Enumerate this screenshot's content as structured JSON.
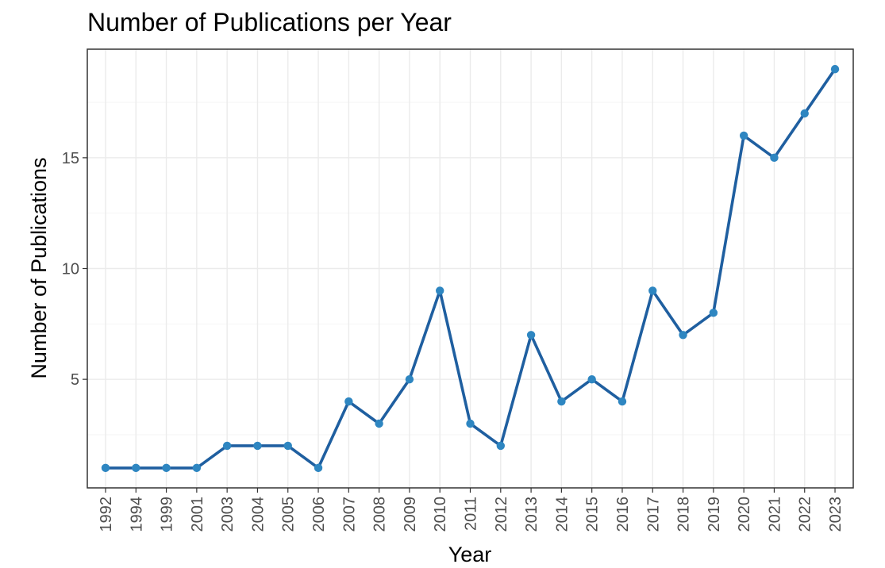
{
  "chart_data": {
    "type": "line",
    "title": "Number of Publications per Year",
    "xlabel": "Year",
    "ylabel": "Number of Publications",
    "categories": [
      "1992",
      "1994",
      "1999",
      "2001",
      "2003",
      "2004",
      "2005",
      "2006",
      "2007",
      "2008",
      "2009",
      "2010",
      "2011",
      "2012",
      "2013",
      "2014",
      "2015",
      "2016",
      "2017",
      "2018",
      "2019",
      "2020",
      "2021",
      "2022",
      "2023"
    ],
    "series": [
      {
        "values": [
          1,
          1,
          1,
          1,
          2,
          2,
          2,
          1,
          4,
          3,
          5,
          9,
          3,
          2,
          7,
          4,
          5,
          4,
          9,
          7,
          8,
          16,
          15,
          17,
          19
        ]
      }
    ],
    "ylim": [
      0.1,
      19.9
    ],
    "yticks": [
      5,
      10,
      15
    ],
    "y_minor_ticks": [
      2.5,
      7.5,
      12.5,
      17.5
    ],
    "grid": true,
    "legend": "none",
    "line_color": "#1f5fa0",
    "point_color": "#2e86c1",
    "x_tick_rotation": "vertical"
  }
}
